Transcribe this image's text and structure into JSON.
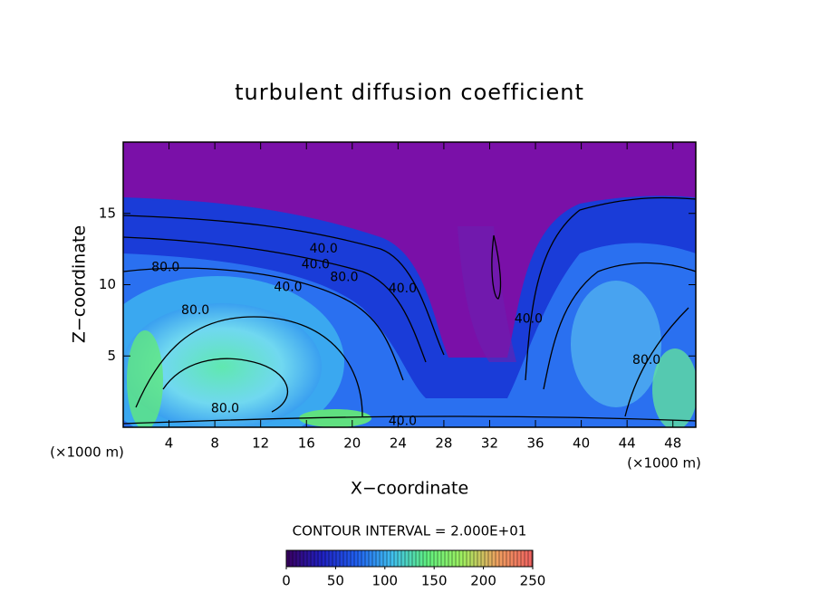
{
  "chart_data": {
    "type": "contour",
    "title": "turbulent diffusion coefficient",
    "x_label": "X−coordinate",
    "y_label": "Z−coordinate",
    "x_unit": "(×1000 m)",
    "y_unit": "(×1000 m)",
    "xlim": [
      0,
      50
    ],
    "ylim": [
      0,
      20
    ],
    "xticks": [
      4,
      8,
      12,
      16,
      20,
      24,
      28,
      32,
      36,
      40,
      44,
      48
    ],
    "yticks": [
      5,
      10,
      15
    ],
    "contour_labels": [
      {
        "value": 40,
        "label": "40.0",
        "x": 17.5,
        "y": 12.5
      },
      {
        "value": 40,
        "label": "40.0",
        "x": 16.8,
        "y": 11.4
      },
      {
        "value": 80,
        "label": "80.0",
        "x": 19.3,
        "y": 10.5
      },
      {
        "value": 80,
        "label": "80.0",
        "x": 3.7,
        "y": 11.2
      },
      {
        "value": 40,
        "label": "40.0",
        "x": 14.4,
        "y": 9.8
      },
      {
        "value": 40,
        "label": "40.0",
        "x": 24.4,
        "y": 9.7
      },
      {
        "value": 80,
        "label": "80.0",
        "x": 6.3,
        "y": 8.2
      },
      {
        "value": 40,
        "label": "40.0",
        "x": 35.4,
        "y": 7.6
      },
      {
        "value": 80,
        "label": "80.0",
        "x": 45.7,
        "y": 4.7
      },
      {
        "value": 80,
        "label": "80.0",
        "x": 8.9,
        "y": 1.3
      },
      {
        "value": 40,
        "label": "40.0",
        "x": 24.4,
        "y": 0.4
      }
    ],
    "contour_interval_text": "CONTOUR INTERVAL = 2.000E+01",
    "colorbar": {
      "lim": [
        0,
        250
      ],
      "ticks": [
        0,
        50,
        100,
        150,
        200,
        250
      ],
      "colormap": [
        "#3a0060",
        "#2020c0",
        "#2060f0",
        "#40c0f0",
        "#60f080",
        "#a0f060",
        "#f0a060",
        "#f06060"
      ]
    }
  }
}
